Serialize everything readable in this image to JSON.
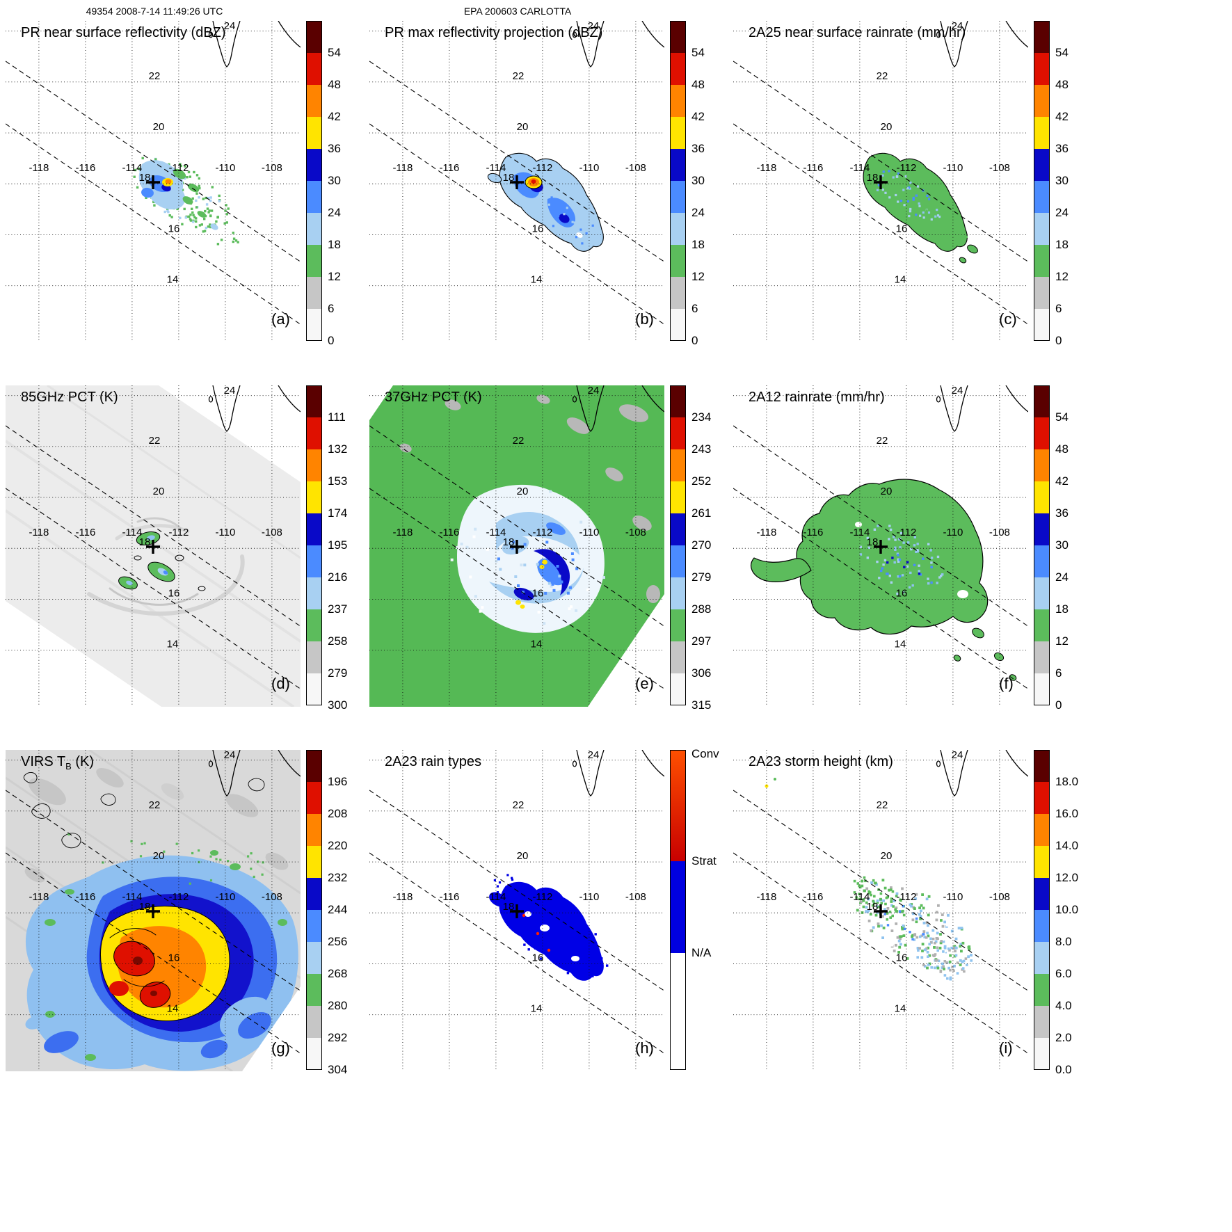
{
  "header": {
    "left": "49354 2008-7-14 11:49:26 UTC",
    "center": "EPA 200603 CARLOTTA"
  },
  "axes": {
    "lon_labels": [
      "-118",
      "-116",
      "-114",
      "-112",
      "-110",
      "-108"
    ],
    "lat_labels": [
      "24",
      "22",
      "20",
      "18",
      "16",
      "14"
    ]
  },
  "colorbar_scales": {
    "scale10_colors": [
      "#5a0000",
      "#df1000",
      "#ff8400",
      "#ffe400",
      "#0909c8",
      "#4b8bff",
      "#a8d0f2",
      "#5cbc5c",
      "#c6c6c6",
      "#f7f7f7"
    ],
    "rain_types_colors": {
      "conv_top": "#ff5000",
      "conv_bottom": "#c80000",
      "strat": "#0000e0",
      "na": "#ffffff"
    }
  },
  "map": {
    "center_marker": {
      "lon": -113.2,
      "lat": 18.1
    },
    "gridlines": "dotted 2-degree lat/lon grid",
    "dashed_lines": "PR swath edges"
  },
  "panels": [
    {
      "id": "a",
      "letter": "(a)",
      "title_pre": "PR near surface reflectivity (dBZ)",
      "title_sub": "",
      "title_post": "",
      "scale": "scale10",
      "cbar_ticks": [
        "54",
        "48",
        "42",
        "36",
        "30",
        "24",
        "18",
        "12",
        "6",
        "0"
      ]
    },
    {
      "id": "b",
      "letter": "(b)",
      "title_pre": "PR max reflectivity projection (dBZ)",
      "title_sub": "",
      "title_post": "",
      "scale": "scale10",
      "cbar_ticks": [
        "54",
        "48",
        "42",
        "36",
        "30",
        "24",
        "18",
        "12",
        "6",
        "0"
      ]
    },
    {
      "id": "c",
      "letter": "(c)",
      "title_pre": "2A25 near surface rainrate (mm/hr)",
      "title_sub": "",
      "title_post": "",
      "scale": "scale10",
      "cbar_ticks": [
        "54",
        "48",
        "42",
        "36",
        "30",
        "24",
        "18",
        "12",
        "6",
        "0"
      ]
    },
    {
      "id": "d",
      "letter": "(d)",
      "title_pre": "85GHz PCT (K)",
      "title_sub": "",
      "title_post": "",
      "scale": "scale10",
      "cbar_ticks": [
        "111",
        "132",
        "153",
        "174",
        "195",
        "216",
        "237",
        "258",
        "279",
        "300"
      ]
    },
    {
      "id": "e",
      "letter": "(e)",
      "title_pre": "37GHz PCT (K)",
      "title_sub": "",
      "title_post": "",
      "scale": "scale10",
      "cbar_ticks": [
        "234",
        "243",
        "252",
        "261",
        "270",
        "279",
        "288",
        "297",
        "306",
        "315"
      ]
    },
    {
      "id": "f",
      "letter": "(f)",
      "title_pre": "2A12 rainrate (mm/hr)",
      "title_sub": "",
      "title_post": "",
      "scale": "scale10",
      "cbar_ticks": [
        "54",
        "48",
        "42",
        "36",
        "30",
        "24",
        "18",
        "12",
        "6",
        "0"
      ]
    },
    {
      "id": "g",
      "letter": "(g)",
      "title_pre": "VIRS T",
      "title_sub": "B",
      "title_post": " (K)",
      "scale": "scale10",
      "cbar_ticks": [
        "196",
        "208",
        "220",
        "232",
        "244",
        "256",
        "268",
        "280",
        "292",
        "304"
      ]
    },
    {
      "id": "h",
      "letter": "(h)",
      "title_pre": "2A23 rain types",
      "title_sub": "",
      "title_post": "",
      "scale": "rain_types",
      "cbar_ticks": [
        "Conv",
        "Strat",
        "N/A"
      ]
    },
    {
      "id": "i",
      "letter": "(i)",
      "title_pre": "2A23 storm height (km)",
      "title_sub": "",
      "title_post": "",
      "scale": "scale10",
      "cbar_ticks": [
        "18.0",
        "16.0",
        "14.0",
        "12.0",
        "10.0",
        "8.0",
        "6.0",
        "4.0",
        "2.0",
        "0.0"
      ]
    }
  ],
  "chart_data": [
    {
      "panel": "(a)",
      "type": "heatmap",
      "title": "PR near surface reflectivity (dBZ)",
      "units": "dBZ",
      "colorbar_ticks": [
        54,
        48,
        42,
        36,
        30,
        24,
        18,
        12,
        6,
        0
      ],
      "lon_ticks": [
        -118,
        -116,
        -114,
        -112,
        -110,
        -108
      ],
      "lat_ticks": [
        24,
        22,
        20,
        18,
        16,
        14
      ],
      "center_marker": {
        "lon": -113.2,
        "lat": 18.1
      },
      "summary": "Scattered rainband NE of storm center inside dashed PR swath; mostly 18-30 dBZ with small 36-48 dBZ cores near -113.4, 18.5"
    },
    {
      "panel": "(b)",
      "type": "heatmap",
      "title": "PR max reflectivity projection (dBZ)",
      "units": "dBZ",
      "colorbar_ticks": [
        54,
        48,
        42,
        36,
        30,
        24,
        18,
        12,
        6,
        0
      ],
      "lon_ticks": [
        -118,
        -116,
        -114,
        -112,
        -110,
        -108
      ],
      "lat_ticks": [
        24,
        22,
        20,
        18,
        16,
        14
      ],
      "center_marker": {
        "lon": -113.2,
        "lat": 18.1
      },
      "summary": "Contoured rain shield elongated SW-NE along the swath; widespread 24-36 dBZ with 42-48 dBZ convective core just NE of center"
    },
    {
      "panel": "(c)",
      "type": "heatmap",
      "title": "2A25 near surface rainrate (mm/hr)",
      "units": "mm/hr",
      "colorbar_ticks": [
        54,
        48,
        42,
        36,
        30,
        24,
        18,
        12,
        6,
        0
      ],
      "lon_ticks": [
        -118,
        -116,
        -114,
        -112,
        -110,
        -108
      ],
      "lat_ticks": [
        24,
        22,
        20,
        18,
        16,
        14
      ],
      "center_marker": {
        "lon": -113.2,
        "lat": 18.1
      },
      "summary": "Contiguous contoured rain area, mostly light rates (green) with embedded higher-rate blue pixels"
    },
    {
      "panel": "(d)",
      "type": "heatmap",
      "title": "85GHz PCT (K)",
      "units": "K",
      "colorbar_ticks": [
        111,
        132,
        153,
        174,
        195,
        216,
        237,
        258,
        279,
        300
      ],
      "lon_ticks": [
        -118,
        -116,
        -114,
        -112,
        -110,
        -108
      ],
      "lat_ticks": [
        24,
        22,
        20,
        18,
        16,
        14
      ],
      "center_marker": {
        "lon": -113.2,
        "lat": 18.1
      },
      "summary": "Wide TMI swath mostly 258-300 K (light gray); small contoured ice-scattering cells of 195-258 K (green/blue) near the center"
    },
    {
      "panel": "(e)",
      "type": "heatmap",
      "title": "37GHz PCT (K)",
      "units": "K",
      "colorbar_ticks": [
        234,
        243,
        252,
        261,
        270,
        279,
        288,
        297,
        306,
        315
      ],
      "lon_ticks": [
        -118,
        -116,
        -114,
        -112,
        -110,
        -108
      ],
      "lat_ticks": [
        24,
        22,
        20,
        18,
        16,
        14
      ],
      "center_marker": {
        "lon": -113.2,
        "lat": 18.1
      },
      "summary": "Green 288-297 K ocean background with gray patches; cyclone shows depressed 261-288 K (pale/blue) spiral and small 252-261 K (yellow) cells"
    },
    {
      "panel": "(f)",
      "type": "heatmap",
      "title": "2A12 rainrate (mm/hr)",
      "units": "mm/hr",
      "colorbar_ticks": [
        54,
        48,
        42,
        36,
        30,
        24,
        18,
        12,
        6,
        0
      ],
      "lon_ticks": [
        -118,
        -116,
        -114,
        -112,
        -110,
        -108
      ],
      "lat_ticks": [
        24,
        22,
        20,
        18,
        16,
        14
      ],
      "center_marker": {
        "lon": -113.2,
        "lat": 18.1
      },
      "summary": "Broad contoured rain area around the center, mostly light rates (green) with blue higher-rate speckles; small outlying cells to the SE"
    },
    {
      "panel": "(g)",
      "type": "heatmap",
      "title": "VIRS TB (K)",
      "units": "K",
      "colorbar_ticks": [
        196,
        208,
        220,
        232,
        244,
        256,
        268,
        280,
        292,
        304
      ],
      "lon_ticks": [
        -118,
        -116,
        -114,
        -112,
        -110,
        -108
      ],
      "lat_ticks": [
        24,
        22,
        20,
        18,
        16,
        14
      ],
      "center_marker": {
        "lon": -113.2,
        "lat": 18.1
      },
      "summary": "Cold cloud shield 196-232 K (red/orange/yellow) over the cyclone surrounded by 232-268 K anvil (blues), warm 280-304 K background (gray)"
    },
    {
      "panel": "(h)",
      "type": "heatmap",
      "title": "2A23 rain types",
      "categories": [
        "Conv",
        "Strat",
        "N/A"
      ],
      "lon_ticks": [
        -118,
        -116,
        -114,
        -112,
        -110,
        -108
      ],
      "lat_ticks": [
        24,
        22,
        20,
        18,
        16,
        14
      ],
      "center_marker": {
        "lon": -113.2,
        "lat": 18.1
      },
      "summary": "Rain area classified predominantly stratiform (blue) with a few isolated convective (red) pixels"
    },
    {
      "panel": "(i)",
      "type": "heatmap",
      "title": "2A23 storm height (km)",
      "units": "km",
      "colorbar_ticks": [
        18.0,
        16.0,
        14.0,
        12.0,
        10.0,
        8.0,
        6.0,
        4.0,
        2.0,
        0.0
      ],
      "lon_ticks": [
        -118,
        -116,
        -114,
        -112,
        -110,
        -108
      ],
      "lat_ticks": [
        24,
        22,
        20,
        18,
        16,
        14
      ],
      "center_marker": {
        "lon": -113.2,
        "lat": 18.1
      },
      "summary": "Speckled storm-height field, mostly 2-8 km (gray/green/light blue) with scattered 8-10 km pixels"
    }
  ]
}
